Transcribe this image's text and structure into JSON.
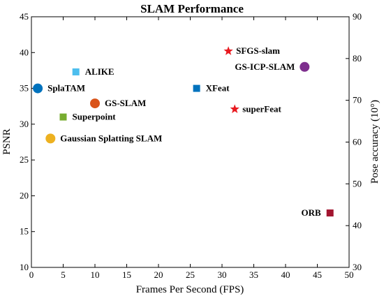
{
  "chart_data": {
    "type": "scatter",
    "title": "SLAM Performance",
    "xlabel": "Frames Per Second (FPS)",
    "ylabel": "PSNR",
    "y2label": "Pose accuracy (10°)",
    "xlim": [
      0,
      50
    ],
    "ylim": [
      10,
      45
    ],
    "y2lim": [
      30,
      90
    ],
    "xticks": [
      0,
      5,
      10,
      15,
      20,
      25,
      30,
      35,
      40,
      45,
      50
    ],
    "yticks": [
      10,
      15,
      20,
      25,
      30,
      35,
      40,
      45
    ],
    "y2ticks": [
      30,
      40,
      50,
      60,
      70,
      80,
      90
    ],
    "grid": false,
    "points": [
      {
        "name": "SFGS-slam",
        "x": 31,
        "y": 40.2,
        "marker": "star",
        "color": "#e8191f",
        "label_side": "right"
      },
      {
        "name": "GS-ICP-SLAM",
        "x": 43,
        "y": 38,
        "marker": "circle",
        "color": "#7e2f8e",
        "label_side": "left"
      },
      {
        "name": "ALIKE",
        "x": 7,
        "y": 37.3,
        "marker": "square",
        "color": "#4dbeee",
        "label_side": "right"
      },
      {
        "name": "SplaTAM",
        "x": 1,
        "y": 35,
        "marker": "circle",
        "color": "#0072bd",
        "label_side": "right"
      },
      {
        "name": "XFeat",
        "x": 26,
        "y": 35,
        "marker": "square",
        "color": "#0072bd",
        "label_side": "right"
      },
      {
        "name": "GS-SLAM",
        "x": 10,
        "y": 32.9,
        "marker": "circle",
        "color": "#d95319",
        "label_side": "right"
      },
      {
        "name": "superFeat",
        "x": 32,
        "y": 32.1,
        "marker": "star",
        "color": "#e8191f",
        "label_side": "right"
      },
      {
        "name": "Superpoint",
        "x": 5,
        "y": 31,
        "marker": "square",
        "color": "#77ac30",
        "label_side": "right"
      },
      {
        "name": "Gaussian Splatting SLAM",
        "x": 3,
        "y": 28,
        "marker": "circle",
        "color": "#edb120",
        "label_side": "right"
      },
      {
        "name": "ORB",
        "x": 47,
        "y": 17.6,
        "marker": "square",
        "color": "#a2142f",
        "label_side": "left"
      }
    ]
  }
}
